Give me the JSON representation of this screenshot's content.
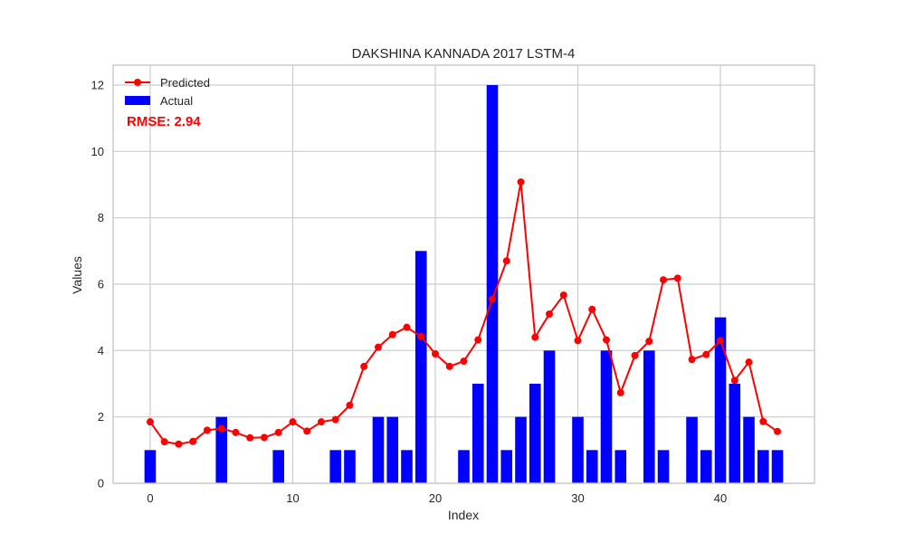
{
  "chart_data": {
    "type": "bar",
    "title": "DAKSHINA KANNADA 2017 LSTM-4",
    "xlabel": "Index",
    "ylabel": "Values",
    "xlim": [
      -2.6,
      46.6
    ],
    "ylim": [
      0,
      12.6
    ],
    "xticks": [
      0,
      10,
      20,
      30,
      40
    ],
    "yticks": [
      0,
      2,
      4,
      6,
      8,
      10,
      12
    ],
    "grid": true,
    "legend_position": "top-left",
    "annotation": "RMSE: 2.94",
    "colors": {
      "actual": "#0000ff",
      "predicted": "#ff0000",
      "grid": "#cccccc",
      "rmse": "#ff0000"
    },
    "series": [
      {
        "name": "Predicted",
        "type": "line",
        "x": [
          0,
          1,
          2,
          3,
          4,
          5,
          6,
          7,
          8,
          9,
          10,
          11,
          12,
          13,
          14,
          15,
          16,
          17,
          18,
          19,
          20,
          21,
          22,
          23,
          24,
          25,
          26,
          27,
          28,
          29,
          30,
          31,
          32,
          33,
          34,
          35,
          36,
          37,
          38,
          39,
          40,
          41,
          42,
          43,
          44
        ],
        "values": [
          1.85,
          1.25,
          1.18,
          1.26,
          1.6,
          1.65,
          1.53,
          1.37,
          1.38,
          1.53,
          1.85,
          1.57,
          1.85,
          1.92,
          2.35,
          3.52,
          4.1,
          4.48,
          4.7,
          4.42,
          3.9,
          3.52,
          3.68,
          4.32,
          5.55,
          6.7,
          9.08,
          4.4,
          5.1,
          5.67,
          4.3,
          5.24,
          4.32,
          2.73,
          3.85,
          4.28,
          6.13,
          6.18,
          3.73,
          3.88,
          4.3,
          3.1,
          3.65,
          1.86,
          1.56
        ]
      },
      {
        "name": "Actual",
        "type": "bar",
        "x": [
          0,
          1,
          2,
          3,
          4,
          5,
          6,
          7,
          8,
          9,
          10,
          11,
          12,
          13,
          14,
          15,
          16,
          17,
          18,
          19,
          20,
          21,
          22,
          23,
          24,
          25,
          26,
          27,
          28,
          29,
          30,
          31,
          32,
          33,
          34,
          35,
          36,
          37,
          38,
          39,
          40,
          41,
          42,
          43,
          44
        ],
        "values": [
          1,
          0,
          0,
          0,
          0,
          2,
          0,
          0,
          0,
          1,
          0,
          0,
          0,
          1,
          1,
          0,
          2,
          2,
          1,
          7,
          0,
          0,
          1,
          3,
          12,
          1,
          2,
          3,
          4,
          0,
          2,
          1,
          4,
          1,
          0,
          4,
          1,
          0,
          2,
          1,
          5,
          3,
          2,
          1,
          1
        ]
      }
    ]
  }
}
